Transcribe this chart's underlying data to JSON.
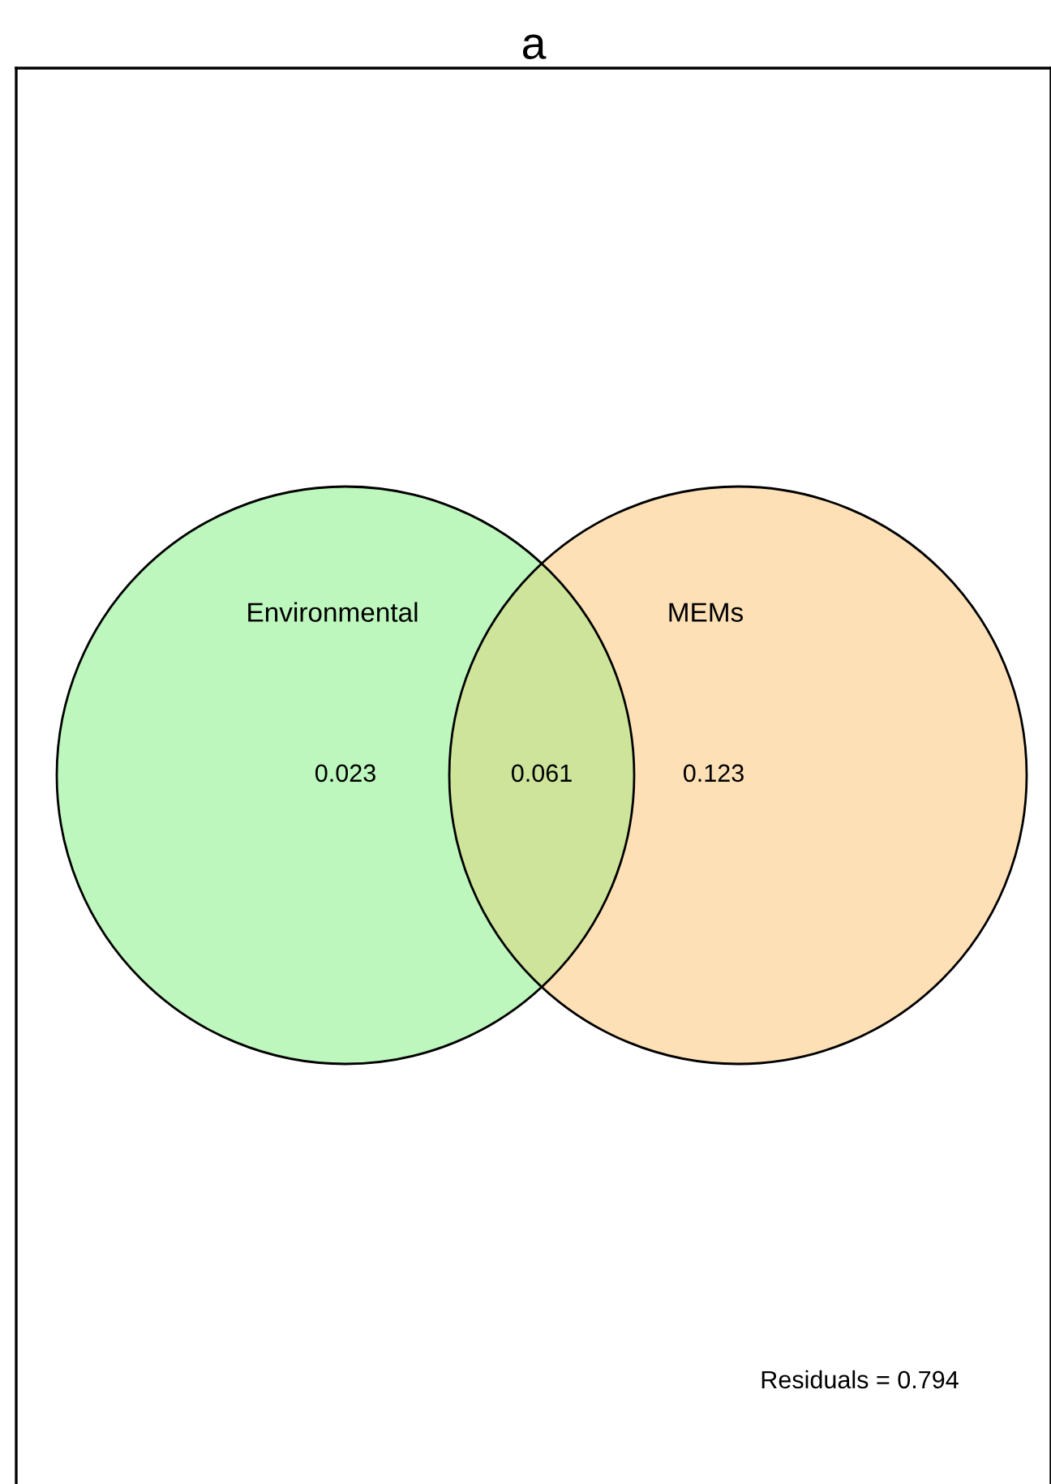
{
  "chart_data": {
    "type": "other",
    "title": "a",
    "categories": [
      null,
      null,
      null
    ],
    "values": [
      0.023,
      0.061,
      0.123
    ],
    "colors": [
      "#bdf7bd",
      "#cde49a",
      "#fde0b6"
    ],
    "data_labels": true,
    "annotations": [
      "Environmental",
      "MEMs",
      "Residuals = 0.794"
    ]
  }
}
